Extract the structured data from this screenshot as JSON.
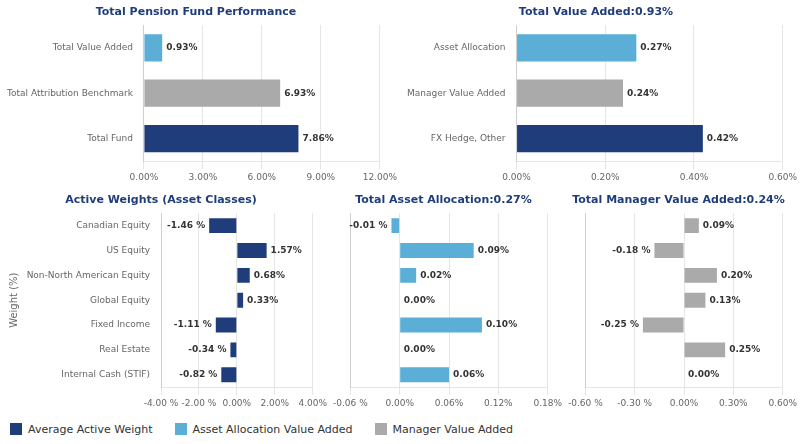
{
  "chart_data": [
    {
      "type": "bar",
      "orientation": "horizontal",
      "title": "Total Pension Fund Performance",
      "categories": [
        "Total Fund",
        "Total Attribution Benchmark",
        "Total Value Added"
      ],
      "values": [
        7.86,
        6.93,
        0.93
      ],
      "value_labels": [
        "7.86%",
        "6.93%",
        "0.93%"
      ],
      "colors": [
        "#1f3d7a",
        "#aaaaaa",
        "#5bafd6"
      ],
      "xlim": [
        0,
        12
      ],
      "xticks": [
        {
          "value": 0,
          "label": "0.00%"
        },
        {
          "value": 3,
          "label": "3.00%"
        },
        {
          "value": 6,
          "label": "6.00%"
        },
        {
          "value": 9,
          "label": "9.00%"
        },
        {
          "value": 12,
          "label": "12.00%"
        }
      ],
      "grid": true,
      "data_labels": true
    },
    {
      "type": "bar",
      "orientation": "horizontal",
      "title": "Total Value Added:0.93%",
      "categories": [
        "FX Hedge, Other",
        "Manager Value Added",
        "Asset Allocation"
      ],
      "values": [
        0.42,
        0.24,
        0.27
      ],
      "value_labels": [
        "0.42%",
        "0.24%",
        "0.27%"
      ],
      "colors": [
        "#1f3d7a",
        "#aaaaaa",
        "#5bafd6"
      ],
      "xlim": [
        0,
        0.6
      ],
      "xticks": [
        {
          "value": 0,
          "label": "0.00%"
        },
        {
          "value": 0.2,
          "label": "0.20%"
        },
        {
          "value": 0.4,
          "label": "0.40%"
        },
        {
          "value": 0.6,
          "label": "0.60%"
        }
      ],
      "grid": true,
      "data_labels": true
    },
    {
      "type": "bar",
      "orientation": "horizontal",
      "title": "Active Weights (Asset Classes)",
      "categories": [
        "Internal Cash (STIF)",
        "Real Estate",
        "Fixed Income",
        "Global Equity",
        "Non-North American Equity",
        "US Equity",
        "Canadian Equity"
      ],
      "values": [
        -0.82,
        -0.34,
        -1.11,
        0.33,
        0.68,
        1.57,
        -1.46
      ],
      "value_labels": [
        "-0.82 %",
        "-0.34 %",
        "-1.11 %",
        "0.33%",
        "0.68%",
        "1.57%",
        "-1.46 %"
      ],
      "color": "#1f3d7a",
      "xlim": [
        -4,
        4
      ],
      "xticks": [
        {
          "value": -4,
          "label": "-4.00 %"
        },
        {
          "value": -2,
          "label": "-2.00 %"
        },
        {
          "value": 0,
          "label": "0.00%"
        },
        {
          "value": 2,
          "label": "2.00%"
        },
        {
          "value": 4,
          "label": "4.00%"
        }
      ],
      "y_label": "Weight (%)",
      "grid": true,
      "data_labels": true
    },
    {
      "type": "bar",
      "orientation": "horizontal",
      "title": "Total Asset Allocation:0.27%",
      "categories": [
        "Internal Cash (STIF)",
        "Real Estate",
        "Fixed Income",
        "Global Equity",
        "Non-North American Equity",
        "US Equity",
        "Canadian Equity"
      ],
      "values": [
        0.06,
        0.0,
        0.1,
        0.0,
        0.02,
        0.09,
        -0.01
      ],
      "value_labels": [
        "0.06%",
        "0.00%",
        "0.10%",
        "0.00%",
        "0.02%",
        "0.09%",
        "-0.01 %"
      ],
      "color": "#5bafd6",
      "xlim": [
        -0.06,
        0.18
      ],
      "xticks": [
        {
          "value": -0.06,
          "label": "-0.06 %"
        },
        {
          "value": 0,
          "label": "0.00%"
        },
        {
          "value": 0.06,
          "label": "0.06%"
        },
        {
          "value": 0.12,
          "label": "0.12%"
        },
        {
          "value": 0.18,
          "label": "0.18%"
        }
      ],
      "tick_labels": "x",
      "grid": true,
      "data_labels": true
    },
    {
      "type": "bar",
      "orientation": "horizontal",
      "title": "Total Manager Value Added:0.24%",
      "categories": [
        "Internal Cash (STIF)",
        "Real Estate",
        "Fixed Income",
        "Global Equity",
        "Non-North American Equity",
        "US Equity",
        "Canadian Equity"
      ],
      "values": [
        0.0,
        0.25,
        -0.25,
        0.13,
        0.2,
        -0.18,
        0.09
      ],
      "value_labels": [
        "0.00%",
        "0.25%",
        "-0.25 %",
        "0.13%",
        "0.20%",
        "-0.18 %",
        "0.09%"
      ],
      "color": "#aaaaaa",
      "xlim": [
        -0.6,
        0.6
      ],
      "xticks": [
        {
          "value": -0.6,
          "label": "-0.60 %"
        },
        {
          "value": -0.3,
          "label": "-0.30 %"
        },
        {
          "value": 0,
          "label": "0.00%"
        },
        {
          "value": 0.3,
          "label": "0.30%"
        },
        {
          "value": 0.6,
          "label": "0.60%"
        }
      ],
      "tick_labels": "x",
      "grid": true,
      "data_labels": true
    }
  ],
  "series": [
    {
      "name": "Average Active Weight",
      "color": "#1f3d7a"
    },
    {
      "name": "Asset Allocation Value Added",
      "color": "#5bafd6"
    },
    {
      "name": "Manager Value Added",
      "color": "#aaaaaa"
    }
  ],
  "legend": "bottom"
}
